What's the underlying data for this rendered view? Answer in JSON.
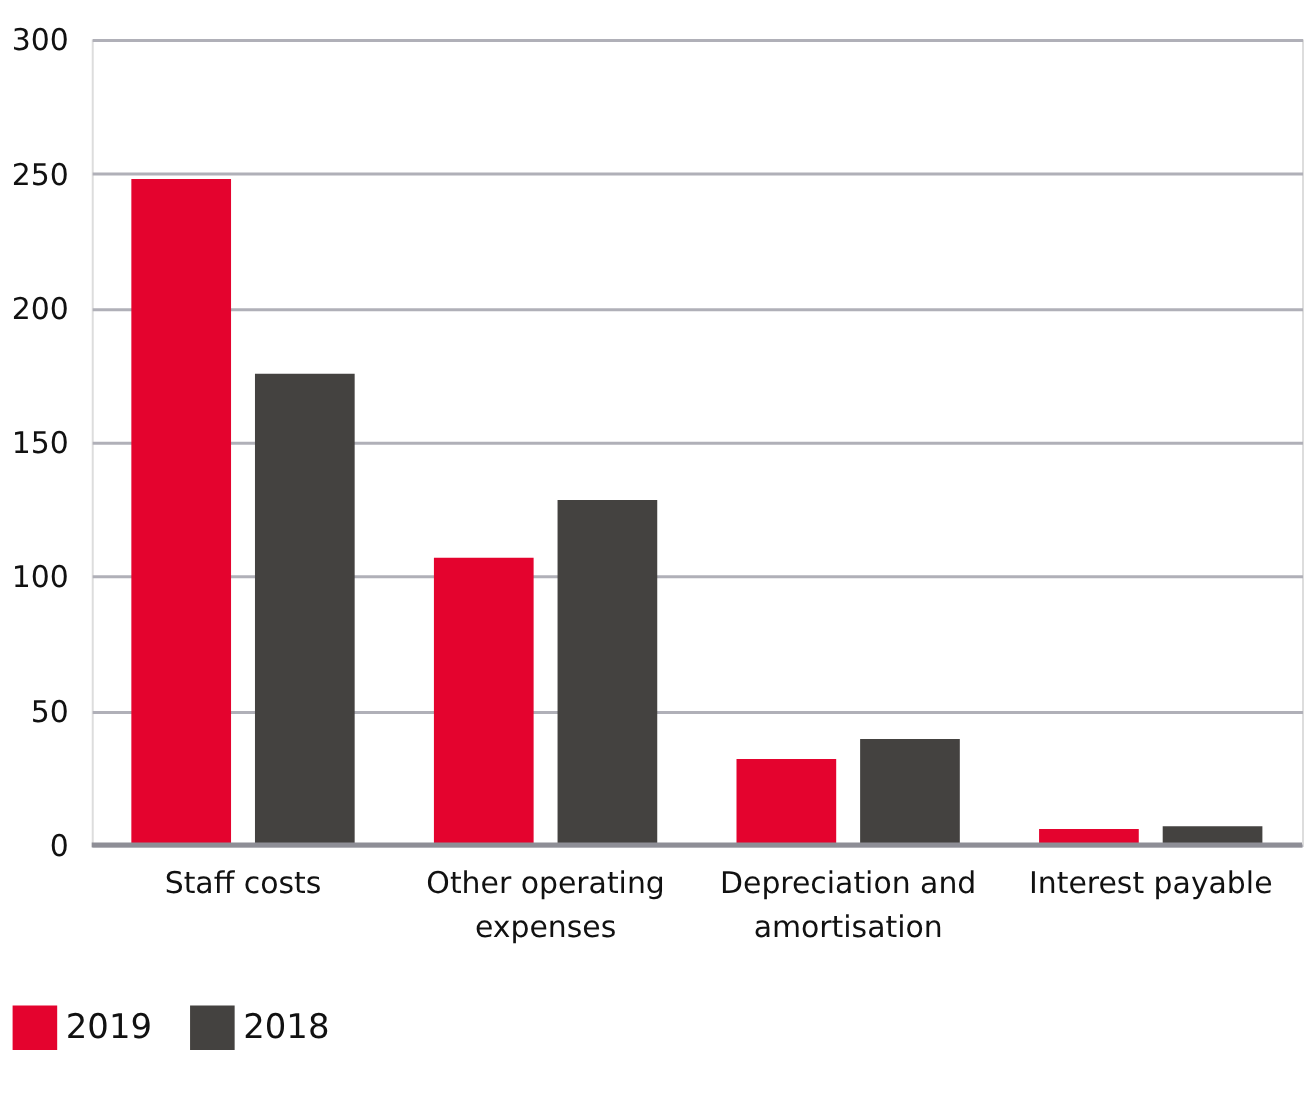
{
  "chart_data": {
    "type": "bar",
    "categories": [
      "Staff costs",
      "Other operating expenses",
      "Depreciation and amortisation",
      "Interest payable"
    ],
    "series": [
      {
        "name": "2019",
        "color": "#e4032e",
        "values": [
          248,
          107,
          32,
          6
        ]
      },
      {
        "name": "2018",
        "color": "#444240",
        "values": [
          175.5,
          128.5,
          39.5,
          7
        ]
      }
    ],
    "ylim": [
      0,
      300
    ],
    "yticks": [
      0,
      50,
      100,
      150,
      200,
      250,
      300
    ],
    "grid": "y",
    "legend": "bottom left"
  }
}
